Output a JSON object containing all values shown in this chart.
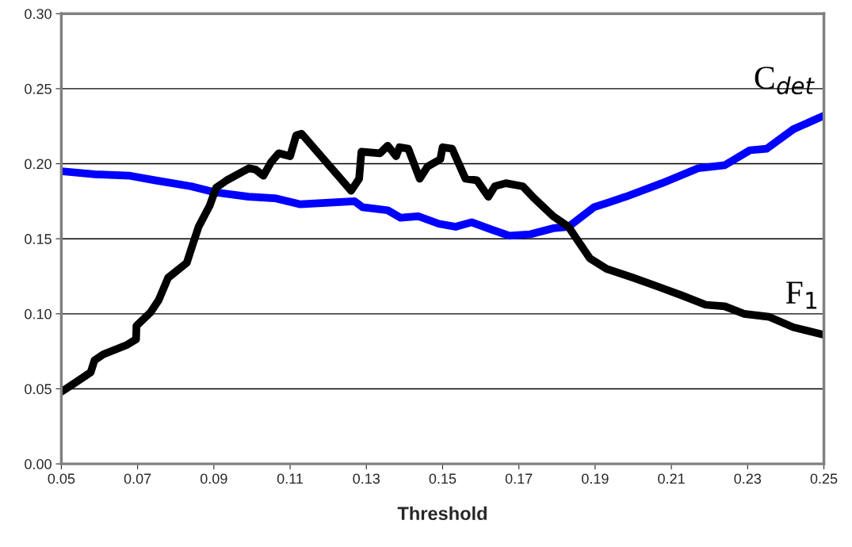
{
  "chart_data": {
    "type": "line",
    "xlabel": "Threshold",
    "xlim": [
      0.05,
      0.25
    ],
    "xticks": [
      0.05,
      0.07,
      0.09,
      0.11,
      0.13,
      0.15,
      0.17,
      0.19,
      0.21,
      0.23,
      0.25
    ],
    "ylim": [
      0,
      0.3
    ],
    "yticks": [
      {
        "value": 0,
        "label": "0.00"
      },
      0.05,
      {
        "value": 0.1,
        "label": "0.10"
      },
      0.15,
      {
        "value": 0.2,
        "label": "0.20"
      },
      0.25,
      {
        "value": 0.3,
        "label": "0.30"
      }
    ],
    "grid": "y",
    "legend": false,
    "marker": "none",
    "line_style": "solid",
    "series": [
      {
        "name": "C$_{det}$",
        "color": "#0000ff",
        "x": [
          0.05,
          0.0588,
          0.068,
          0.0745,
          0.084,
          0.0902,
          0.0991,
          0.106,
          0.1127,
          0.1269,
          0.129,
          0.1356,
          0.139,
          0.1436,
          0.149,
          0.1534,
          0.1576,
          0.163,
          0.1675,
          0.173,
          0.179,
          0.183,
          0.1897,
          0.198,
          0.2075,
          0.217,
          0.224,
          0.2306,
          0.235,
          0.242,
          0.25
        ],
        "values": [
          0.195,
          0.193,
          0.192,
          0.189,
          0.185,
          0.181,
          0.178,
          0.177,
          0.173,
          0.175,
          0.171,
          0.169,
          0.164,
          0.165,
          0.16,
          0.158,
          0.161,
          0.156,
          0.152,
          0.153,
          0.157,
          0.158,
          0.171,
          0.178,
          0.187,
          0.197,
          0.199,
          0.209,
          0.21,
          0.223,
          0.232
        ]
      },
      {
        "name": "F$_{1}$",
        "color": "#000000",
        "x": [
          0.05,
          0.0536,
          0.0577,
          0.0587,
          0.061,
          0.067,
          0.0696,
          0.0697,
          0.0734,
          0.0755,
          0.078,
          0.0829,
          0.0843,
          0.086,
          0.0889,
          0.0906,
          0.0934,
          0.0992,
          0.101,
          0.103,
          0.105,
          0.107,
          0.11,
          0.1116,
          0.113,
          0.126,
          0.1281,
          0.1287,
          0.1336,
          0.1356,
          0.1378,
          0.1387,
          0.141,
          0.144,
          0.146,
          0.1494,
          0.15,
          0.1525,
          0.156,
          0.159,
          0.162,
          0.1637,
          0.1666,
          0.171,
          0.174,
          0.179,
          0.183,
          0.1886,
          0.193,
          0.2,
          0.2066,
          0.213,
          0.219,
          0.224,
          0.229,
          0.2356,
          0.242,
          0.25
        ],
        "values": [
          0.048,
          0.054,
          0.061,
          0.069,
          0.073,
          0.079,
          0.083,
          0.092,
          0.101,
          0.109,
          0.124,
          0.134,
          0.145,
          0.158,
          0.172,
          0.184,
          0.189,
          0.197,
          0.196,
          0.192,
          0.201,
          0.207,
          0.205,
          0.219,
          0.22,
          0.182,
          0.19,
          0.208,
          0.207,
          0.212,
          0.205,
          0.211,
          0.21,
          0.19,
          0.198,
          0.203,
          0.211,
          0.21,
          0.19,
          0.189,
          0.178,
          0.185,
          0.187,
          0.185,
          0.177,
          0.165,
          0.158,
          0.137,
          0.13,
          0.124,
          0.118,
          0.112,
          0.106,
          0.105,
          0.1,
          0.098,
          0.091,
          0.086
        ]
      }
    ]
  }
}
